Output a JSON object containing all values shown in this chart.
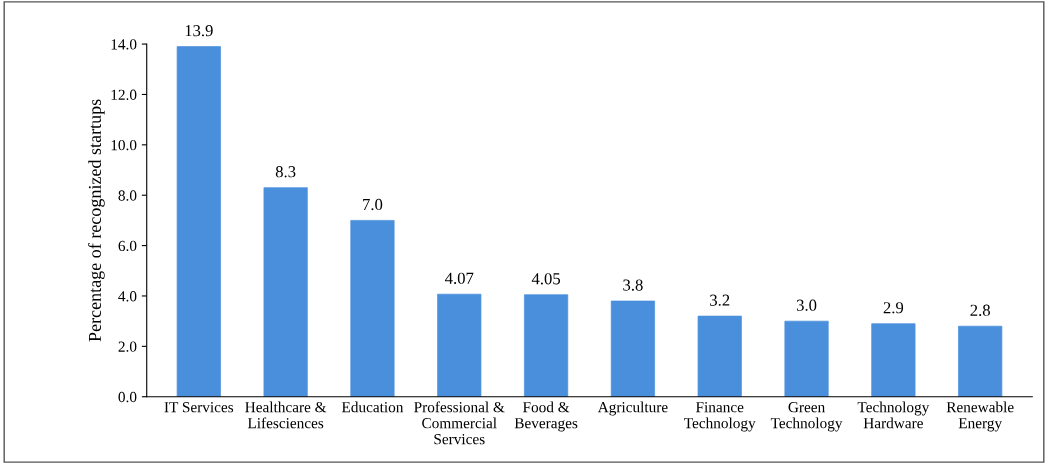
{
  "chart_data": {
    "type": "bar",
    "ylabel": "Percentage of recognized startups",
    "categories": [
      "IT Services",
      "Healthcare &\nLifesciences",
      "Education",
      "Professional &\nCommercial\nServices",
      "Food &\nBeverages",
      "Agriculture",
      "Finance\nTechnology",
      "Green\nTechnology",
      "Technology\nHardware",
      "Renewable\nEnergy"
    ],
    "values": [
      13.9,
      8.3,
      7.0,
      4.07,
      4.05,
      3.8,
      3.2,
      3.0,
      2.9,
      2.8
    ],
    "value_labels": [
      "13.9",
      "8.3",
      "7.0",
      "4.07",
      "4.05",
      "3.8",
      "3.2",
      "3.0",
      "2.9",
      "2.8"
    ],
    "color": "#4a8fdc",
    "ylim": [
      0,
      14
    ],
    "yticks": [
      {
        "value": 0,
        "label": "0.0"
      },
      {
        "value": 2,
        "label": "2.0"
      },
      {
        "value": 4,
        "label": "4.0"
      },
      {
        "value": 6,
        "label": "6.0"
      },
      {
        "value": 8,
        "label": "8.0"
      },
      {
        "value": 10,
        "label": "10.0"
      },
      {
        "value": 12,
        "label": "12.0"
      },
      {
        "value": 14,
        "label": "14.0"
      }
    ],
    "grid": false,
    "legend": false
  }
}
